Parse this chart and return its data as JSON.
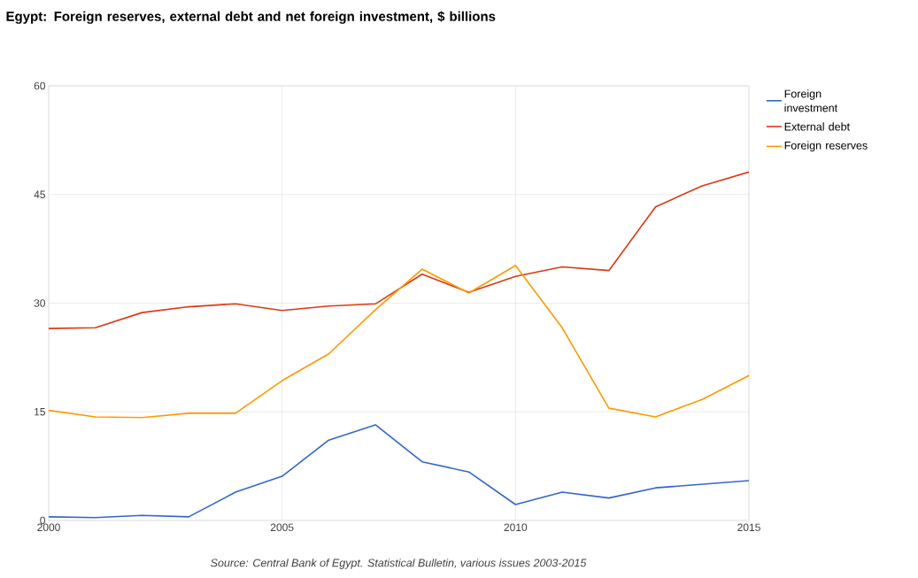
{
  "chart_data": {
    "type": "line",
    "title": "Egypt: Foreign reserves, external debt and net foreign investment, $ billions",
    "x": [
      2000,
      2001,
      2002,
      2003,
      2004,
      2005,
      2006,
      2007,
      2008,
      2009,
      2010,
      2011,
      2012,
      2013,
      2014,
      2015
    ],
    "series": [
      {
        "name": "Foreign investment",
        "color": "#3366cc",
        "values": [
          0.5,
          0.4,
          0.7,
          0.5,
          3.9,
          6.1,
          11.1,
          13.2,
          8.1,
          6.7,
          2.2,
          3.9,
          3.1,
          4.5,
          5.0,
          5.5
        ]
      },
      {
        "name": "External debt",
        "color": "#dc3912",
        "values": [
          26.5,
          26.6,
          28.7,
          29.5,
          29.9,
          29.0,
          29.6,
          29.9,
          34.0,
          31.5,
          33.7,
          35.0,
          34.5,
          43.3,
          46.2,
          48.1
        ]
      },
      {
        "name": "Foreign reserves",
        "color": "#ff9900",
        "values": [
          15.2,
          14.3,
          14.2,
          14.8,
          14.8,
          19.3,
          23.0,
          29.1,
          34.7,
          31.4,
          35.2,
          26.6,
          15.5,
          14.3,
          16.7,
          20.0
        ]
      }
    ],
    "xlim": [
      2000,
      2015
    ],
    "xticks": [
      2000,
      2005,
      2010,
      2015
    ],
    "ylim": [
      0,
      60
    ],
    "yticks": [
      0,
      15,
      30,
      45,
      60
    ],
    "grid": true,
    "legend": "right",
    "marker": "none",
    "line_style": "solid",
    "annotations": [
      "Source: Central Bank of Egypt. Statistical Bulletin, various issues 2003-2015"
    ]
  }
}
